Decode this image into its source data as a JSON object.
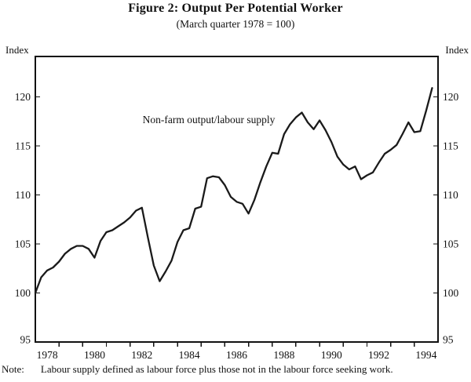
{
  "page": {
    "title": "Figure 2: Output Per Potential Worker",
    "subtitle": "(March quarter 1978 = 100)",
    "note_label": "Note:",
    "note_text": "Labour supply defined as labour force plus those not in the labour force seeking work."
  },
  "chart_data": {
    "type": "line",
    "title": "Figure 2: Output Per Potential Worker",
    "subtitle": "(March quarter 1978 = 100)",
    "ylabel_left": "Index",
    "ylabel_right": "Index",
    "annotation": "Non-farm output/labour supply",
    "frequency": "quarterly",
    "x_start_year": 1978,
    "x_step_years": 0.25,
    "x_tick_years": [
      1979,
      1980,
      1981,
      1982,
      1983,
      1984,
      1985,
      1986,
      1987,
      1988,
      1989,
      1990,
      1991,
      1992,
      1993,
      1994
    ],
    "x_label_years": [
      1978,
      1980,
      1982,
      1984,
      1986,
      1988,
      1990,
      1992,
      1994
    ],
    "xlim": [
      1978,
      1995
    ],
    "yticks": [
      95,
      100,
      105,
      110,
      115,
      120
    ],
    "ylim": [
      95,
      124.1
    ],
    "grid": false,
    "legend_position": "none",
    "line_color": "#1a1a1a",
    "values": [
      100.0,
      101.6,
      102.3,
      102.6,
      103.2,
      104.0,
      104.5,
      104.8,
      104.8,
      104.5,
      103.6,
      105.3,
      106.2,
      106.4,
      106.8,
      107.2,
      107.7,
      108.4,
      108.7,
      105.7,
      102.8,
      101.2,
      102.2,
      103.3,
      105.2,
      106.4,
      106.6,
      108.6,
      108.8,
      111.7,
      111.9,
      111.8,
      111.0,
      109.8,
      109.3,
      109.1,
      108.1,
      109.5,
      111.3,
      112.9,
      114.3,
      114.2,
      116.2,
      117.2,
      117.9,
      118.4,
      117.4,
      116.7,
      117.6,
      116.6,
      115.4,
      113.9,
      113.1,
      112.6,
      112.9,
      111.6,
      112.0,
      112.3,
      113.3,
      114.2,
      114.6,
      115.1,
      116.2,
      117.4,
      116.4,
      116.5,
      118.6,
      120.9
    ]
  }
}
